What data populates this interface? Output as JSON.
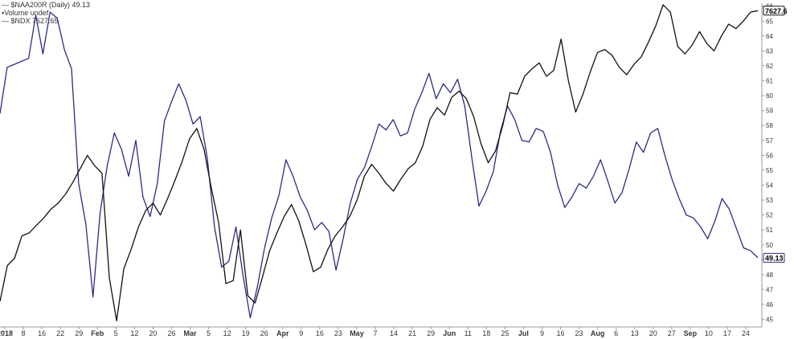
{
  "legend": {
    "line1": "— $NAA200R (Daily) 49.13",
    "line2": "▪Volume undef",
    "line3": "— $NDX 7627.65"
  },
  "chart_data": {
    "type": "line",
    "ylim": [
      44.6,
      66.2
    ],
    "y_ticks": [
      45,
      46,
      47,
      48,
      49,
      50,
      51,
      52,
      53,
      54,
      55,
      56,
      57,
      58,
      59,
      60,
      61,
      62,
      63,
      64,
      65,
      66
    ],
    "x_ticks": [
      {
        "label": "2018",
        "bold": true
      },
      {
        "label": "8"
      },
      {
        "label": "16"
      },
      {
        "label": "22"
      },
      {
        "label": "29"
      },
      {
        "label": "Feb",
        "bold": true
      },
      {
        "label": "5"
      },
      {
        "label": "12"
      },
      {
        "label": "20"
      },
      {
        "label": "26"
      },
      {
        "label": "Mar",
        "bold": true
      },
      {
        "label": "5"
      },
      {
        "label": "12"
      },
      {
        "label": "19"
      },
      {
        "label": "26"
      },
      {
        "label": "Apr",
        "bold": true
      },
      {
        "label": "9"
      },
      {
        "label": "16"
      },
      {
        "label": "23"
      },
      {
        "label": "May",
        "bold": true
      },
      {
        "label": "7"
      },
      {
        "label": "14"
      },
      {
        "label": "21"
      },
      {
        "label": "29"
      },
      {
        "label": "Jun",
        "bold": true
      },
      {
        "label": "11"
      },
      {
        "label": "18"
      },
      {
        "label": "25"
      },
      {
        "label": "Jul",
        "bold": true
      },
      {
        "label": "9"
      },
      {
        "label": "16"
      },
      {
        "label": "23"
      },
      {
        "label": "Aug",
        "bold": true
      },
      {
        "label": "6"
      },
      {
        "label": "13"
      },
      {
        "label": "20"
      },
      {
        "label": "27"
      },
      {
        "label": "Sep",
        "bold": true
      },
      {
        "label": "10"
      },
      {
        "label": "17"
      },
      {
        "label": "24"
      }
    ],
    "series": [
      {
        "name": "$NAA200R",
        "color": "#2b2b8c",
        "last_label": "49.13",
        "values": [
          58.8,
          61.9,
          62.1,
          62.3,
          62.5,
          65.4,
          62.8,
          65.6,
          65.2,
          63.1,
          61.8,
          54.1,
          51.4,
          46.5,
          52.1,
          55.3,
          57.5,
          56.4,
          54.6,
          57.0,
          53.2,
          51.9,
          54.1,
          58.3,
          59.6,
          60.8,
          59.7,
          58.1,
          58.6,
          55.8,
          51.2,
          48.5,
          48.9,
          51.2,
          47.9,
          45.1,
          47.2,
          49.8,
          51.8,
          53.3,
          55.7,
          54.6,
          53.2,
          52.3,
          51.0,
          51.5,
          50.9,
          48.3,
          50.4,
          52.8,
          54.4,
          55.2,
          56.6,
          58.1,
          57.7,
          58.4,
          57.3,
          57.5,
          59.1,
          60.2,
          61.5,
          59.8,
          60.8,
          60.2,
          61.1,
          59.3,
          55.8,
          52.6,
          53.6,
          54.9,
          57.6,
          59.3,
          58.4,
          57.0,
          56.9,
          57.8,
          57.6,
          56.2,
          54.0,
          52.5,
          53.2,
          54.1,
          53.8,
          54.6,
          55.7,
          54.3,
          52.8,
          53.5,
          55.1,
          56.9,
          56.2,
          57.5,
          57.8,
          56.0,
          54.4,
          53.1,
          52.0,
          51.8,
          51.2,
          50.4,
          51.6,
          53.1,
          52.4,
          51.1,
          49.8,
          49.6,
          49.13
        ]
      },
      {
        "name": "$NDX",
        "color": "#111111",
        "last_label": "7627.6",
        "values": [
          46.2,
          48.6,
          49.1,
          50.6,
          50.8,
          51.3,
          51.8,
          52.4,
          52.8,
          53.4,
          54.2,
          55.1,
          56.0,
          55.3,
          54.8,
          47.8,
          44.9,
          48.4,
          49.7,
          51.2,
          52.3,
          52.8,
          52.0,
          53.1,
          54.3,
          55.6,
          57.1,
          57.8,
          56.4,
          53.8,
          51.5,
          47.4,
          47.6,
          51.0,
          46.6,
          46.1,
          47.8,
          49.6,
          50.8,
          51.9,
          52.7,
          51.6,
          50.0,
          48.2,
          48.5,
          49.7,
          50.6,
          51.2,
          51.9,
          53.0,
          54.6,
          55.4,
          54.8,
          54.1,
          53.6,
          54.4,
          55.1,
          55.5,
          56.6,
          58.4,
          59.2,
          58.7,
          59.9,
          60.3,
          59.8,
          58.6,
          56.8,
          55.5,
          56.3,
          58.0,
          60.2,
          60.1,
          61.3,
          61.8,
          62.2,
          61.3,
          61.7,
          63.8,
          61.0,
          58.9,
          60.1,
          61.6,
          62.9,
          63.1,
          62.7,
          61.9,
          61.4,
          62.1,
          62.6,
          63.6,
          64.7,
          66.1,
          65.6,
          63.3,
          62.8,
          63.4,
          64.3,
          63.5,
          63.0,
          64.0,
          64.8,
          64.5,
          65.0,
          65.6,
          65.7
        ]
      }
    ]
  }
}
